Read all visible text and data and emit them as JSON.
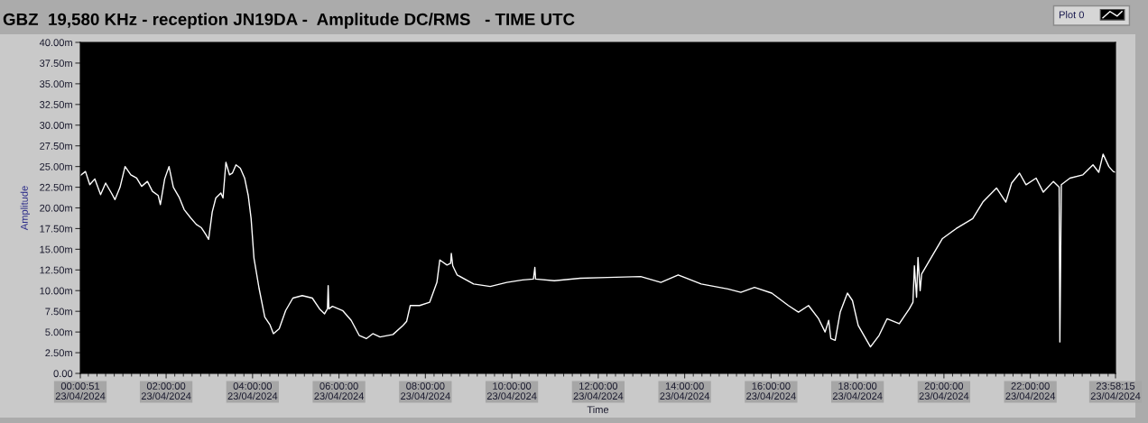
{
  "chart_data": {
    "type": "line",
    "title": "GBZ  19,580 KHz - reception JN19DA -  Amplitude DC/RMS   - TIME UTC",
    "xlabel": "Time",
    "ylabel": "Amplitude",
    "x": [
      "2024-04-23T00:00:51",
      "2024-04-23T00:08",
      "2024-04-23T00:14",
      "2024-04-23T00:21",
      "2024-04-23T00:29",
      "2024-04-23T00:36",
      "2024-04-23T00:44",
      "2024-04-23T00:49",
      "2024-04-23T00:56",
      "2024-04-23T01:03",
      "2024-04-23T01:11",
      "2024-04-23T01:19",
      "2024-04-23T01:26",
      "2024-04-23T01:34",
      "2024-04-23T01:41",
      "2024-04-23T01:49",
      "2024-04-23T01:52",
      "2024-04-23T01:58",
      "2024-04-23T02:04",
      "2024-04-23T02:10",
      "2024-04-23T02:18",
      "2024-04-23T02:25",
      "2024-04-23T02:34",
      "2024-04-23T02:42",
      "2024-04-23T02:49",
      "2024-04-23T02:55",
      "2024-04-23T02:59",
      "2024-04-23T03:04",
      "2024-04-23T03:09",
      "2024-04-23T03:16",
      "2024-04-23T03:19",
      "2024-04-23T03:23",
      "2024-04-23T03:28",
      "2024-04-23T03:32",
      "2024-04-23T03:37",
      "2024-04-23T03:43",
      "2024-04-23T03:49",
      "2024-04-23T03:54",
      "2024-04-23T03:58",
      "2024-04-23T04:02",
      "2024-04-23T04:09",
      "2024-04-23T04:17",
      "2024-04-23T04:24",
      "2024-04-23T04:29",
      "2024-04-23T04:37",
      "2024-04-23T04:46",
      "2024-04-23T04:56",
      "2024-04-23T05:09",
      "2024-04-23T05:23",
      "2024-04-23T05:33",
      "2024-04-23T05:40",
      "2024-04-23T05:44",
      "2024-04-23T05:45",
      "2024-04-23T05:46",
      "2024-04-23T05:51",
      "2024-04-23T06:05",
      "2024-04-23T06:17",
      "2024-04-23T06:28",
      "2024-04-23T06:38",
      "2024-04-23T06:47",
      "2024-04-23T06:57",
      "2024-04-23T07:15",
      "2024-04-23T07:29",
      "2024-04-23T07:34",
      "2024-04-23T07:39",
      "2024-04-23T07:52",
      "2024-04-23T08:06",
      "2024-04-23T08:16",
      "2024-04-23T08:20",
      "2024-04-23T08:30",
      "2024-04-23T08:35",
      "2024-04-23T08:36",
      "2024-04-23T08:38",
      "2024-04-23T08:44",
      "2024-04-23T09:07",
      "2024-04-23T09:30",
      "2024-04-23T09:53",
      "2024-04-23T10:15",
      "2024-04-23T10:30",
      "2024-04-23T10:32",
      "2024-04-23T10:33",
      "2024-04-23T10:59",
      "2024-04-23T11:35",
      "2024-04-23T12:13",
      "2024-04-23T12:59",
      "2024-04-23T13:27",
      "2024-04-23T13:51",
      "2024-04-23T14:23",
      "2024-04-23T15:00",
      "2024-04-23T15:18",
      "2024-04-23T15:37",
      "2024-04-23T16:01",
      "2024-04-23T16:24",
      "2024-04-23T16:38",
      "2024-04-23T16:52",
      "2024-04-23T17:06",
      "2024-04-23T17:15",
      "2024-04-23T17:20",
      "2024-04-23T17:23",
      "2024-04-23T17:29",
      "2024-04-23T17:36",
      "2024-04-23T17:46",
      "2024-04-23T17:53",
      "2024-04-23T18:01",
      "2024-04-23T18:18",
      "2024-04-23T18:30",
      "2024-04-23T18:41",
      "2024-04-23T18:58",
      "2024-04-23T19:12",
      "2024-04-23T19:17",
      "2024-04-23T19:19",
      "2024-04-23T19:22",
      "2024-04-23T19:24",
      "2024-04-23T19:27",
      "2024-04-23T19:29",
      "2024-04-23T19:39",
      "2024-04-23T19:58",
      "2024-04-23T20:17",
      "2024-04-23T20:40",
      "2024-04-23T20:54",
      "2024-04-23T21:13",
      "2024-04-23T21:26",
      "2024-04-23T21:34",
      "2024-04-23T21:45",
      "2024-04-23T21:54",
      "2024-04-23T22:08",
      "2024-04-23T22:18",
      "2024-04-23T22:32",
      "2024-04-23T22:40",
      "2024-04-23T22:41",
      "2024-04-23T22:42",
      "2024-04-23T22:43",
      "2024-04-23T22:55",
      "2024-04-23T23:13",
      "2024-04-23T23:27",
      "2024-04-23T23:35",
      "2024-04-23T23:41",
      "2024-04-23T23:49",
      "2024-04-23T23:55",
      "2024-04-23T23:58:15"
    ],
    "series": [
      {
        "name": "Plot 0",
        "color": "#ffffff",
        "values": [
          23.9,
          24.4,
          22.8,
          23.5,
          21.6,
          23.0,
          21.8,
          21.0,
          22.5,
          25.0,
          24.0,
          23.6,
          22.6,
          23.2,
          22.0,
          21.5,
          20.4,
          23.5,
          25.0,
          22.5,
          21.3,
          19.8,
          18.8,
          18.0,
          17.6,
          16.8,
          16.2,
          19.5,
          21.2,
          21.8,
          21.2,
          25.5,
          24.0,
          24.2,
          25.2,
          24.8,
          23.6,
          21.5,
          18.7,
          13.9,
          10.3,
          6.8,
          5.9,
          4.8,
          5.4,
          7.6,
          9.1,
          9.4,
          9.1,
          7.8,
          7.2,
          7.8,
          10.6,
          7.8,
          8.1,
          7.6,
          6.4,
          4.6,
          4.2,
          4.8,
          4.4,
          4.7,
          5.8,
          6.3,
          8.2,
          8.2,
          8.6,
          11.0,
          13.7,
          13.1,
          13.3,
          14.5,
          13.0,
          11.9,
          10.8,
          10.5,
          11.0,
          11.3,
          11.4,
          12.8,
          11.4,
          11.2,
          11.5,
          11.6,
          11.7,
          11.0,
          11.9,
          10.8,
          10.2,
          9.8,
          10.4,
          9.7,
          8.2,
          7.4,
          8.2,
          6.6,
          5.0,
          6.4,
          4.2,
          4.0,
          7.4,
          9.7,
          8.8,
          5.8,
          3.2,
          4.6,
          6.6,
          6.0,
          7.8,
          8.6,
          13.0,
          9.2,
          14.0,
          10.0,
          12.0,
          13.5,
          16.3,
          17.5,
          18.7,
          20.7,
          22.4,
          20.7,
          23.0,
          24.2,
          22.8,
          23.6,
          21.9,
          23.2,
          22.5,
          3.8,
          13.2,
          22.8,
          23.6,
          24.0,
          25.2,
          24.3,
          26.5,
          25.0,
          24.4,
          24.3
        ]
      }
    ],
    "xlim": [
      "2024-04-23T00:00:51",
      "2024-04-23T23:58:15"
    ],
    "xticks": [
      {
        "value": "2024-04-23T00:00:51",
        "label": "00:00:51\n23/04/2024"
      },
      {
        "value": "2024-04-23T00:12",
        "label": null
      },
      {
        "value": "2024-04-23T00:24",
        "label": null
      },
      {
        "value": "2024-04-23T00:36",
        "label": null
      },
      {
        "value": "2024-04-23T00:48",
        "label": null
      },
      {
        "value": "2024-04-23T01:00",
        "label": null
      },
      {
        "value": "2024-04-23T01:12",
        "label": null
      },
      {
        "value": "2024-04-23T01:24",
        "label": null
      },
      {
        "value": "2024-04-23T01:36",
        "label": null
      },
      {
        "value": "2024-04-23T01:48",
        "label": null
      },
      {
        "value": "2024-04-23T02:00",
        "label": "02:00:00\n23/04/2024"
      },
      {
        "value": "2024-04-23T02:12",
        "label": null
      },
      {
        "value": "2024-04-23T02:24",
        "label": null
      },
      {
        "value": "2024-04-23T02:36",
        "label": null
      },
      {
        "value": "2024-04-23T02:48",
        "label": null
      },
      {
        "value": "2024-04-23T03:00",
        "label": null
      },
      {
        "value": "2024-04-23T03:12",
        "label": null
      },
      {
        "value": "2024-04-23T03:24",
        "label": null
      },
      {
        "value": "2024-04-23T03:36",
        "label": null
      },
      {
        "value": "2024-04-23T03:48",
        "label": null
      },
      {
        "value": "2024-04-23T04:00",
        "label": "04:00:00\n23/04/2024"
      },
      {
        "value": "2024-04-23T04:12",
        "label": null
      },
      {
        "value": "2024-04-23T04:24",
        "label": null
      },
      {
        "value": "2024-04-23T04:36",
        "label": null
      },
      {
        "value": "2024-04-23T04:48",
        "label": null
      },
      {
        "value": "2024-04-23T05:00",
        "label": null
      },
      {
        "value": "2024-04-23T05:12",
        "label": null
      },
      {
        "value": "2024-04-23T05:24",
        "label": null
      },
      {
        "value": "2024-04-23T05:36",
        "label": null
      },
      {
        "value": "2024-04-23T05:48",
        "label": null
      },
      {
        "value": "2024-04-23T06:00",
        "label": "06:00:00\n23/04/2024"
      },
      {
        "value": "2024-04-23T06:12",
        "label": null
      },
      {
        "value": "2024-04-23T06:24",
        "label": null
      },
      {
        "value": "2024-04-23T06:36",
        "label": null
      },
      {
        "value": "2024-04-23T06:48",
        "label": null
      },
      {
        "value": "2024-04-23T07:00",
        "label": null
      },
      {
        "value": "2024-04-23T07:12",
        "label": null
      },
      {
        "value": "2024-04-23T07:24",
        "label": null
      },
      {
        "value": "2024-04-23T07:36",
        "label": null
      },
      {
        "value": "2024-04-23T07:48",
        "label": null
      },
      {
        "value": "2024-04-23T08:00",
        "label": "08:00:00\n23/04/2024"
      },
      {
        "value": "2024-04-23T08:12",
        "label": null
      },
      {
        "value": "2024-04-23T08:24",
        "label": null
      },
      {
        "value": "2024-04-23T08:36",
        "label": null
      },
      {
        "value": "2024-04-23T08:48",
        "label": null
      },
      {
        "value": "2024-04-23T09:00",
        "label": null
      },
      {
        "value": "2024-04-23T09:12",
        "label": null
      },
      {
        "value": "2024-04-23T09:24",
        "label": null
      },
      {
        "value": "2024-04-23T09:36",
        "label": null
      },
      {
        "value": "2024-04-23T09:48",
        "label": null
      },
      {
        "value": "2024-04-23T10:00",
        "label": "10:00:00\n23/04/2024"
      },
      {
        "value": "2024-04-23T10:12",
        "label": null
      },
      {
        "value": "2024-04-23T10:24",
        "label": null
      },
      {
        "value": "2024-04-23T10:36",
        "label": null
      },
      {
        "value": "2024-04-23T10:48",
        "label": null
      },
      {
        "value": "2024-04-23T11:00",
        "label": null
      },
      {
        "value": "2024-04-23T11:12",
        "label": null
      },
      {
        "value": "2024-04-23T11:24",
        "label": null
      },
      {
        "value": "2024-04-23T11:36",
        "label": null
      },
      {
        "value": "2024-04-23T11:48",
        "label": null
      },
      {
        "value": "2024-04-23T12:00",
        "label": "12:00:00\n23/04/2024"
      },
      {
        "value": "2024-04-23T12:12",
        "label": null
      },
      {
        "value": "2024-04-23T12:24",
        "label": null
      },
      {
        "value": "2024-04-23T12:36",
        "label": null
      },
      {
        "value": "2024-04-23T12:48",
        "label": null
      },
      {
        "value": "2024-04-23T13:00",
        "label": null
      },
      {
        "value": "2024-04-23T13:12",
        "label": null
      },
      {
        "value": "2024-04-23T13:24",
        "label": null
      },
      {
        "value": "2024-04-23T13:36",
        "label": null
      },
      {
        "value": "2024-04-23T13:48",
        "label": null
      },
      {
        "value": "2024-04-23T14:00",
        "label": "14:00:00\n23/04/2024"
      },
      {
        "value": "2024-04-23T14:12",
        "label": null
      },
      {
        "value": "2024-04-23T14:24",
        "label": null
      },
      {
        "value": "2024-04-23T14:36",
        "label": null
      },
      {
        "value": "2024-04-23T14:48",
        "label": null
      },
      {
        "value": "2024-04-23T15:00",
        "label": null
      },
      {
        "value": "2024-04-23T15:12",
        "label": null
      },
      {
        "value": "2024-04-23T15:24",
        "label": null
      },
      {
        "value": "2024-04-23T15:36",
        "label": null
      },
      {
        "value": "2024-04-23T15:48",
        "label": null
      },
      {
        "value": "2024-04-23T16:00",
        "label": "16:00:00\n23/04/2024"
      },
      {
        "value": "2024-04-23T16:12",
        "label": null
      },
      {
        "value": "2024-04-23T16:24",
        "label": null
      },
      {
        "value": "2024-04-23T16:36",
        "label": null
      },
      {
        "value": "2024-04-23T16:48",
        "label": null
      },
      {
        "value": "2024-04-23T17:00",
        "label": null
      },
      {
        "value": "2024-04-23T17:12",
        "label": null
      },
      {
        "value": "2024-04-23T17:24",
        "label": null
      },
      {
        "value": "2024-04-23T17:36",
        "label": null
      },
      {
        "value": "2024-04-23T17:48",
        "label": null
      },
      {
        "value": "2024-04-23T18:00",
        "label": "18:00:00\n23/04/2024"
      },
      {
        "value": "2024-04-23T18:12",
        "label": null
      },
      {
        "value": "2024-04-23T18:24",
        "label": null
      },
      {
        "value": "2024-04-23T18:36",
        "label": null
      },
      {
        "value": "2024-04-23T18:48",
        "label": null
      },
      {
        "value": "2024-04-23T19:00",
        "label": null
      },
      {
        "value": "2024-04-23T19:12",
        "label": null
      },
      {
        "value": "2024-04-23T19:24",
        "label": null
      },
      {
        "value": "2024-04-23T19:36",
        "label": null
      },
      {
        "value": "2024-04-23T19:48",
        "label": null
      },
      {
        "value": "2024-04-23T20:00",
        "label": "20:00:00\n23/04/2024"
      },
      {
        "value": "2024-04-23T20:12",
        "label": null
      },
      {
        "value": "2024-04-23T20:24",
        "label": null
      },
      {
        "value": "2024-04-23T20:36",
        "label": null
      },
      {
        "value": "2024-04-23T20:48",
        "label": null
      },
      {
        "value": "2024-04-23T21:00",
        "label": null
      },
      {
        "value": "2024-04-23T21:12",
        "label": null
      },
      {
        "value": "2024-04-23T21:24",
        "label": null
      },
      {
        "value": "2024-04-23T21:36",
        "label": null
      },
      {
        "value": "2024-04-23T21:48",
        "label": null
      },
      {
        "value": "2024-04-23T22:00",
        "label": "22:00:00\n23/04/2024"
      },
      {
        "value": "2024-04-23T22:12",
        "label": null
      },
      {
        "value": "2024-04-23T22:24",
        "label": null
      },
      {
        "value": "2024-04-23T22:36",
        "label": null
      },
      {
        "value": "2024-04-23T22:48",
        "label": null
      },
      {
        "value": "2024-04-23T23:00",
        "label": null
      },
      {
        "value": "2024-04-23T23:12",
        "label": null
      },
      {
        "value": "2024-04-23T23:24",
        "label": null
      },
      {
        "value": "2024-04-23T23:36",
        "label": null
      },
      {
        "value": "2024-04-23T23:48",
        "label": null
      },
      {
        "value": "2024-04-23T23:58:15",
        "label": "23:58:15\n23/04/2024"
      }
    ],
    "ylim": [
      0,
      40
    ],
    "yticks": [
      {
        "value": 0,
        "label": "0.00"
      },
      {
        "value": 2.5,
        "label": "2.50m"
      },
      {
        "value": 5,
        "label": "5.00m"
      },
      {
        "value": 7.5,
        "label": "7.50m"
      },
      {
        "value": 10,
        "label": "10.00m"
      },
      {
        "value": 12.5,
        "label": "12.50m"
      },
      {
        "value": 15,
        "label": "15.00m"
      },
      {
        "value": 17.5,
        "label": "17.50m"
      },
      {
        "value": 20,
        "label": "20.00m"
      },
      {
        "value": 22.5,
        "label": "22.50m"
      },
      {
        "value": 25,
        "label": "25.00m"
      },
      {
        "value": 27.5,
        "label": "27.50m"
      },
      {
        "value": 30,
        "label": "30.00m"
      },
      {
        "value": 32.5,
        "label": "32.50m"
      },
      {
        "value": 35,
        "label": "35.00m"
      },
      {
        "value": 37.5,
        "label": "37.50m"
      },
      {
        "value": 40,
        "label": "40.00m"
      }
    ],
    "grid": false,
    "legend": "top right",
    "line_style": "solid"
  }
}
